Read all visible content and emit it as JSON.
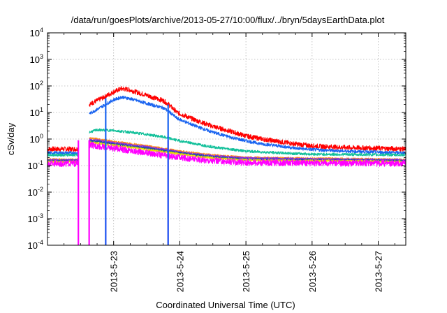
{
  "chart_data": {
    "type": "line",
    "title": "/data/run/goesPlots/archive/2013-05-27/10:00/flux/../bryn/5daysEarthData.plot",
    "xlabel": "Coordinated Universal Time (UTC)",
    "ylabel": "cSv/day",
    "y_scale": "log",
    "ylim": [
      0.0001,
      10000
    ],
    "xlim": [
      "2013-05-22 00:00",
      "2013-05-27 10:00"
    ],
    "x_ticks": [
      "2013-5-23",
      "2013-5-24",
      "2013-5-25",
      "2013-5-26",
      "2013-5-27"
    ],
    "y_ticks": [
      {
        "base": "10",
        "exp": "-4"
      },
      {
        "base": "10",
        "exp": "-3"
      },
      {
        "base": "10",
        "exp": "-2"
      },
      {
        "base": "10",
        "exp": "-1"
      },
      {
        "base": "10",
        "exp": "0"
      },
      {
        "base": "10",
        "exp": "1"
      },
      {
        "base": "10",
        "exp": "2"
      },
      {
        "base": "10",
        "exp": "3"
      },
      {
        "base": "10",
        "exp": "4"
      }
    ],
    "grid": true,
    "data_gaps": [
      [
        "2013-05-22 11:12",
        "2013-05-22 15:07"
      ]
    ],
    "series": [
      {
        "color": "#ff0000",
        "noise": 0.09,
        "points": [
          [
            "2013-05-22 00:00",
            0.42
          ],
          [
            "2013-05-22 11:00",
            0.42
          ],
          [
            "2013-05-22 15:07",
            20
          ],
          [
            "2013-05-22 18:00",
            28
          ],
          [
            "2013-05-22 21:00",
            40
          ],
          [
            "2013-05-23 00:00",
            60
          ],
          [
            "2013-05-23 03:00",
            80
          ],
          [
            "2013-05-23 06:00",
            70
          ],
          [
            "2013-05-23 09:00",
            55
          ],
          [
            "2013-05-23 12:00",
            45
          ],
          [
            "2013-05-23 15:00",
            35
          ],
          [
            "2013-05-23 18:00",
            28
          ],
          [
            "2013-05-23 20:00",
            20
          ],
          [
            "2013-05-23 23:00",
            10
          ],
          [
            "2013-05-24 06:00",
            5
          ],
          [
            "2013-05-24 12:00",
            3
          ],
          [
            "2013-05-24 18:00",
            2
          ],
          [
            "2013-05-25 00:00",
            1.3
          ],
          [
            "2013-05-25 06:00",
            1.0
          ],
          [
            "2013-05-25 12:00",
            0.8
          ],
          [
            "2013-05-25 18:00",
            0.65
          ],
          [
            "2013-05-26 00:00",
            0.55
          ],
          [
            "2013-05-26 12:00",
            0.48
          ],
          [
            "2013-05-27 00:00",
            0.45
          ],
          [
            "2013-05-27 10:00",
            0.42
          ]
        ]
      },
      {
        "color": "#1a64f0",
        "noise": 0.06,
        "points": [
          [
            "2013-05-22 00:00",
            0.3
          ],
          [
            "2013-05-22 11:00",
            0.3
          ],
          [
            "2013-05-22 15:07",
            9
          ],
          [
            "2013-05-22 18:00",
            13
          ],
          [
            "2013-05-22 21:00",
            20
          ],
          [
            "2013-05-23 00:00",
            30
          ],
          [
            "2013-05-23 03:00",
            38
          ],
          [
            "2013-05-23 06:00",
            33
          ],
          [
            "2013-05-23 09:00",
            27
          ],
          [
            "2013-05-23 12:00",
            22
          ],
          [
            "2013-05-23 15:00",
            18
          ],
          [
            "2013-05-23 18:00",
            15
          ],
          [
            "2013-05-23 20:00",
            11
          ],
          [
            "2013-05-23 23:00",
            6
          ],
          [
            "2013-05-24 06:00",
            3
          ],
          [
            "2013-05-24 12:00",
            1.8
          ],
          [
            "2013-05-24 18:00",
            1.2
          ],
          [
            "2013-05-25 00:00",
            0.85
          ],
          [
            "2013-05-25 06:00",
            0.65
          ],
          [
            "2013-05-25 12:00",
            0.55
          ],
          [
            "2013-05-25 18:00",
            0.45
          ],
          [
            "2013-05-26 00:00",
            0.4
          ],
          [
            "2013-05-26 12:00",
            0.35
          ],
          [
            "2013-05-27 00:00",
            0.32
          ],
          [
            "2013-05-27 10:00",
            0.3
          ]
        ]
      },
      {
        "color": "#12c09a",
        "noise": 0.05,
        "points": [
          [
            "2013-05-22 00:00",
            0.25
          ],
          [
            "2013-05-22 11:00",
            0.25
          ],
          [
            "2013-05-22 15:07",
            1.8
          ],
          [
            "2013-05-22 18:00",
            2.2
          ],
          [
            "2013-05-23 00:00",
            2.1
          ],
          [
            "2013-05-23 06:00",
            1.8
          ],
          [
            "2013-05-23 12:00",
            1.5
          ],
          [
            "2013-05-23 18:00",
            1.2
          ],
          [
            "2013-05-24 00:00",
            0.85
          ],
          [
            "2013-05-24 06:00",
            0.65
          ],
          [
            "2013-05-24 12:00",
            0.5
          ],
          [
            "2013-05-25 00:00",
            0.35
          ],
          [
            "2013-05-25 12:00",
            0.3
          ],
          [
            "2013-05-26 00:00",
            0.27
          ],
          [
            "2013-05-27 10:00",
            0.25
          ]
        ]
      },
      {
        "color": "#ff8c1a",
        "noise": 0.04,
        "points": [
          [
            "2013-05-22 00:00",
            0.17
          ],
          [
            "2013-05-22 11:00",
            0.17
          ],
          [
            "2013-05-22 15:07",
            1.05
          ],
          [
            "2013-05-22 18:00",
            1.0
          ],
          [
            "2013-05-23 00:00",
            0.8
          ],
          [
            "2013-05-23 12:00",
            0.55
          ],
          [
            "2013-05-24 00:00",
            0.35
          ],
          [
            "2013-05-24 12:00",
            0.25
          ],
          [
            "2013-05-25 00:00",
            0.2
          ],
          [
            "2013-05-27 10:00",
            0.17
          ]
        ]
      },
      {
        "color": "#8a2be2",
        "noise": 0.04,
        "points": [
          [
            "2013-05-22 00:00",
            0.16
          ],
          [
            "2013-05-22 11:00",
            0.16
          ],
          [
            "2013-05-22 15:07",
            0.95
          ],
          [
            "2013-05-22 18:00",
            0.9
          ],
          [
            "2013-05-23 00:00",
            0.72
          ],
          [
            "2013-05-23 12:00",
            0.5
          ],
          [
            "2013-05-24 00:00",
            0.32
          ],
          [
            "2013-05-24 12:00",
            0.23
          ],
          [
            "2013-05-25 00:00",
            0.19
          ],
          [
            "2013-05-27 10:00",
            0.16
          ]
        ]
      },
      {
        "color": "#2050a0",
        "noise": 0.04,
        "points": [
          [
            "2013-05-22 00:00",
            0.15
          ],
          [
            "2013-05-22 11:00",
            0.15
          ],
          [
            "2013-05-22 15:07",
            0.85
          ],
          [
            "2013-05-22 18:00",
            0.8
          ],
          [
            "2013-05-23 00:00",
            0.65
          ],
          [
            "2013-05-23 12:00",
            0.45
          ],
          [
            "2013-05-24 00:00",
            0.3
          ],
          [
            "2013-05-24 12:00",
            0.21
          ],
          [
            "2013-05-25 00:00",
            0.17
          ],
          [
            "2013-05-27 10:00",
            0.15
          ]
        ]
      },
      {
        "color": "#e8e000",
        "noise": 0.04,
        "points": [
          [
            "2013-05-22 00:00",
            0.14
          ],
          [
            "2013-05-22 11:00",
            0.14
          ],
          [
            "2013-05-22 15:07",
            0.75
          ],
          [
            "2013-05-22 18:00",
            0.7
          ],
          [
            "2013-05-23 00:00",
            0.58
          ],
          [
            "2013-05-23 12:00",
            0.4
          ],
          [
            "2013-05-24 00:00",
            0.27
          ],
          [
            "2013-05-24 12:00",
            0.19
          ],
          [
            "2013-05-25 00:00",
            0.16
          ],
          [
            "2013-05-27 10:00",
            0.14
          ]
        ]
      },
      {
        "color": "#ff00ff",
        "noise": 0.12,
        "points": [
          [
            "2013-05-22 00:00",
            0.12
          ],
          [
            "2013-05-22 11:00",
            0.12
          ],
          [
            "2013-05-22 15:07",
            0.6
          ],
          [
            "2013-05-22 18:00",
            0.55
          ],
          [
            "2013-05-23 00:00",
            0.45
          ],
          [
            "2013-05-23 12:00",
            0.3
          ],
          [
            "2013-05-24 00:00",
            0.2
          ],
          [
            "2013-05-24 12:00",
            0.15
          ],
          [
            "2013-05-25 00:00",
            0.13
          ],
          [
            "2013-05-27 10:00",
            0.12
          ]
        ]
      }
    ],
    "dropouts": [
      {
        "x": "2013-05-22 11:12",
        "color": "#ff00ff"
      },
      {
        "x": "2013-05-22 15:07",
        "color": "#ff00ff"
      },
      {
        "x": "2013-05-22 21:07",
        "color": "#ff00ff"
      },
      {
        "x": "2013-05-22 21:07",
        "color": "#1a64f0",
        "to": 35
      },
      {
        "x": "2013-05-23 19:46",
        "color": "#ff00ff"
      },
      {
        "x": "2013-05-23 19:46",
        "color": "#1a64f0",
        "to": 20
      }
    ]
  }
}
